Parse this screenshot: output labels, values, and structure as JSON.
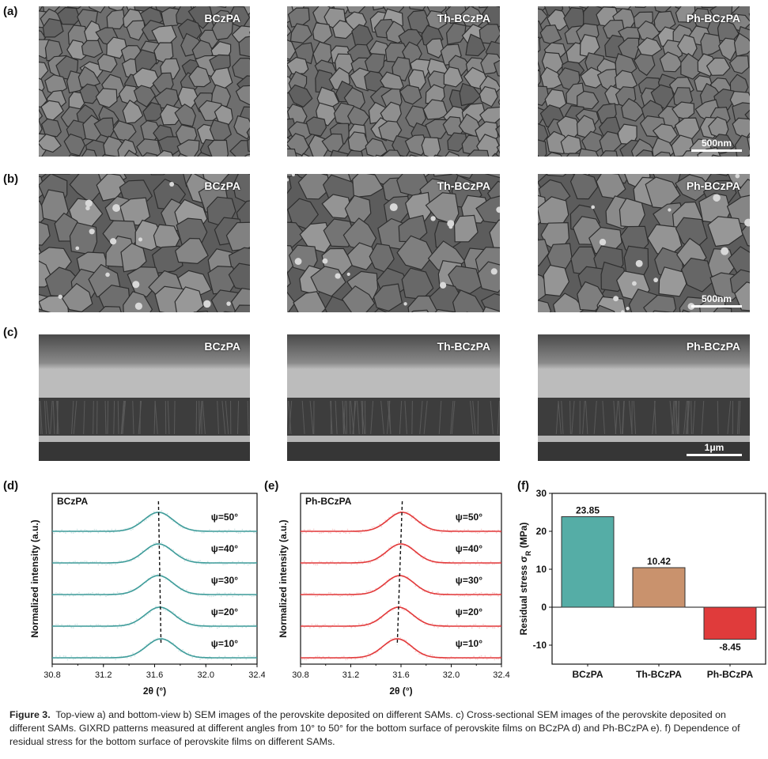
{
  "panel_letters": [
    "(a)",
    "(b)",
    "(c)",
    "(d)",
    "(e)",
    "(f)"
  ],
  "sem_rows": [
    {
      "letter": "(a)",
      "labels": [
        "BCzPA",
        "Th-BCzPA",
        "Ph-BCzPA"
      ],
      "scalebar": "500nm",
      "kind": "top"
    },
    {
      "letter": "(b)",
      "labels": [
        "BCzPA",
        "Th-BCzPA",
        "Ph-BCzPA"
      ],
      "scalebar": "500nm",
      "kind": "bottom"
    },
    {
      "letter": "(c)",
      "labels": [
        "BCzPA",
        "Th-BCzPA",
        "Ph-BCzPA"
      ],
      "scalebar": "1μm",
      "kind": "cross"
    }
  ],
  "chart_data": [
    {
      "type": "line",
      "panel": "(d)",
      "title": "BCzPA",
      "xlabel": "2θ (°)",
      "ylabel": "Normalized intensity (a.u.)",
      "xlim": [
        30.8,
        32.4
      ],
      "xticks": [
        "30.8",
        "31.2",
        "31.6",
        "32.0",
        "32.4"
      ],
      "series": [
        {
          "name": "ψ=50°",
          "peak": 31.63
        },
        {
          "name": "ψ=40°",
          "peak": 31.63
        },
        {
          "name": "ψ=30°",
          "peak": 31.63
        },
        {
          "name": "ψ=20°",
          "peak": 31.64
        },
        {
          "name": "ψ=10°",
          "peak": 31.65
        }
      ],
      "color": "#3e9c9a"
    },
    {
      "type": "line",
      "panel": "(e)",
      "title": "Ph-BCzPA",
      "xlabel": "2θ (°)",
      "ylabel": "Normalized intensity (a.u.)",
      "xlim": [
        30.8,
        32.4
      ],
      "xticks": [
        "30.8",
        "31.2",
        "31.6",
        "32.0",
        "32.4"
      ],
      "series": [
        {
          "name": "ψ=50°",
          "peak": 31.61
        },
        {
          "name": "ψ=40°",
          "peak": 31.6
        },
        {
          "name": "ψ=30°",
          "peak": 31.59
        },
        {
          "name": "ψ=20°",
          "peak": 31.58
        },
        {
          "name": "ψ=10°",
          "peak": 31.57
        }
      ],
      "color": "#e2393a"
    },
    {
      "type": "bar",
      "panel": "(f)",
      "categories": [
        "BCzPA",
        "Th-BCzPA",
        "Ph-BCzPA"
      ],
      "values": [
        23.85,
        10.42,
        -8.45
      ],
      "value_labels": [
        "23.85",
        "10.42",
        "-8.45"
      ],
      "ylabel": "Residual stress σ",
      "ylabel_sub": "R",
      "ylabel_unit": " (MPa)",
      "ylim": [
        -15,
        30
      ],
      "yticks": [
        -10,
        0,
        10,
        20,
        30
      ],
      "colors": [
        "#55ada6",
        "#c9926d",
        "#e03b3b"
      ]
    }
  ],
  "caption": {
    "figure_label": "Figure 3.",
    "text": "Top-view a) and bottom-view b) SEM images of the perovskite deposited on different SAMs. c) Cross-sectional SEM images of the perovskite deposited on different SAMs. GIXRD patterns measured at different angles from 10° to 50° for the bottom surface of perovskite films on BCzPA d) and Ph-BCzPA e). f) Dependence of residual stress for the bottom surface of perovskite films on different SAMs."
  }
}
